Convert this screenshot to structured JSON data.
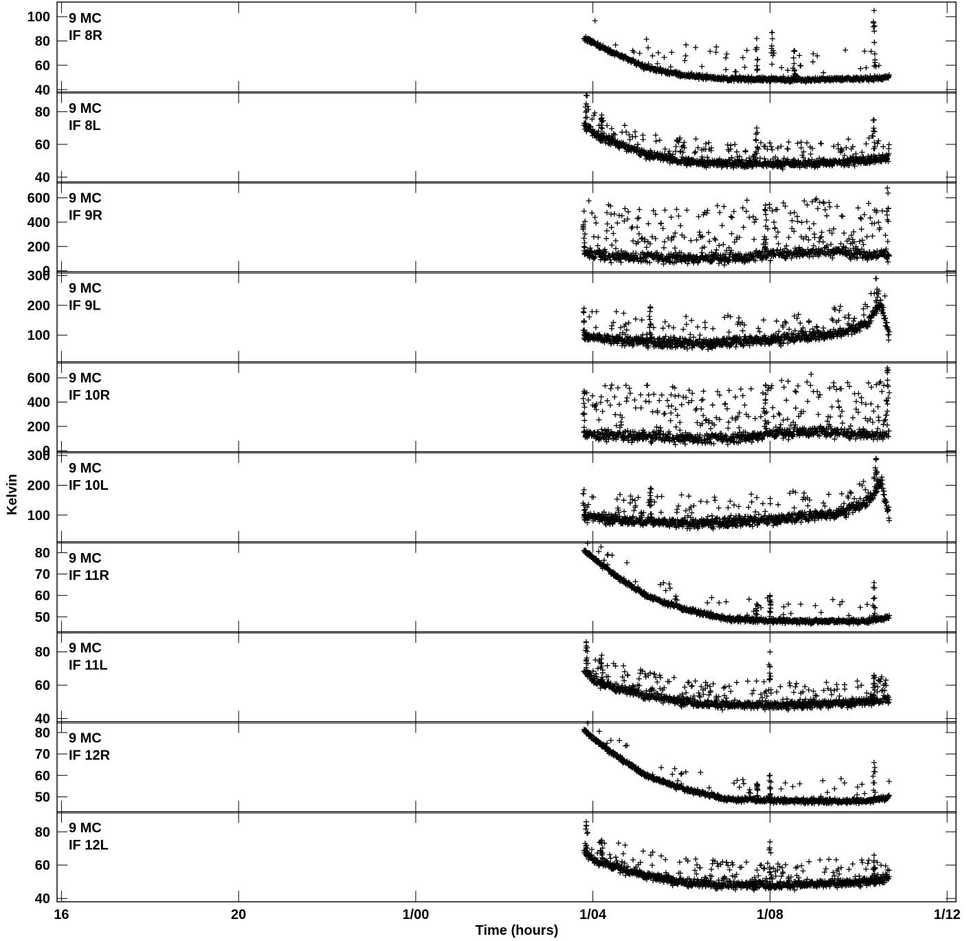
{
  "chart_data": {
    "type": "scatter",
    "xlabel": "Time (hours)",
    "ylabel": "Kelvin",
    "x_ticks": [
      {
        "hours": 16,
        "label": "16"
      },
      {
        "hours": 20,
        "label": "20"
      },
      {
        "hours": 24,
        "label": "1/00"
      },
      {
        "hours": 28,
        "label": "1/04"
      },
      {
        "hours": 32,
        "label": "1/08"
      },
      {
        "hours": 36,
        "label": "1/12"
      }
    ],
    "xlim": [
      15.9,
      36.2
    ],
    "marker": "+",
    "data_start_hours": 27.8,
    "data_end_hours": 34.7,
    "panels": [
      {
        "source": "9 MC",
        "channel": "IF 8R",
        "ylim": [
          38,
          112
        ],
        "yticks": [
          40,
          60,
          80,
          100
        ],
        "trend": [
          [
            27.8,
            82
          ],
          [
            28.1,
            77
          ],
          [
            28.6,
            68
          ],
          [
            29.2,
            58
          ],
          [
            30.0,
            52
          ],
          [
            31.0,
            49
          ],
          [
            32.5,
            48
          ],
          [
            34.2,
            49
          ],
          [
            34.7,
            50
          ]
        ],
        "scatter": 1.5,
        "outlier_rate": 0.06,
        "outlier_max": 25,
        "spikes": [
          [
            31.7,
            82
          ],
          [
            32.05,
            87
          ],
          [
            32.55,
            72
          ],
          [
            34.35,
            105
          ]
        ]
      },
      {
        "source": "9 MC",
        "channel": "IF 8L",
        "ylim": [
          37,
          92
        ],
        "yticks": [
          40,
          60,
          80
        ],
        "trend": [
          [
            27.8,
            72
          ],
          [
            28.1,
            65
          ],
          [
            28.6,
            60
          ],
          [
            29.2,
            54
          ],
          [
            30.0,
            50
          ],
          [
            31.0,
            48
          ],
          [
            32.5,
            48
          ],
          [
            34.2,
            50
          ],
          [
            34.7,
            52
          ]
        ],
        "scatter": 2.0,
        "outlier_rate": 0.18,
        "outlier_max": 14,
        "spikes": [
          [
            27.85,
            90
          ],
          [
            28.2,
            78
          ],
          [
            31.7,
            70
          ],
          [
            34.35,
            75
          ]
        ]
      },
      {
        "source": "9 MC",
        "channel": "IF 9R",
        "ylim": [
          -10,
          730
        ],
        "yticks": [
          0,
          200,
          400,
          600
        ],
        "trend": [
          [
            27.8,
            140
          ],
          [
            28.5,
            120
          ],
          [
            29.5,
            110
          ],
          [
            30.5,
            100
          ],
          [
            31.5,
            110
          ],
          [
            32.0,
            140
          ],
          [
            33.0,
            160
          ],
          [
            34.7,
            130
          ]
        ],
        "scatter": 35,
        "outlier_rate": 0.25,
        "outlier_max": 420,
        "spikes": [
          [
            27.8,
            490
          ],
          [
            31.9,
            540
          ],
          [
            34.65,
            680
          ]
        ]
      },
      {
        "source": "9 MC",
        "channel": "IF 9L",
        "ylim": [
          10,
          312
        ],
        "yticks": [
          100,
          200,
          300
        ],
        "trend": [
          [
            27.8,
            95
          ],
          [
            28.5,
            85
          ],
          [
            29.5,
            75
          ],
          [
            30.5,
            72
          ],
          [
            31.5,
            80
          ],
          [
            32.5,
            90
          ],
          [
            33.5,
            105
          ],
          [
            34.2,
            140
          ],
          [
            34.5,
            210
          ],
          [
            34.7,
            90
          ]
        ],
        "scatter": 14,
        "outlier_rate": 0.12,
        "outlier_max": 90,
        "spikes": [
          [
            27.8,
            190
          ],
          [
            29.3,
            195
          ],
          [
            34.4,
            290
          ]
        ]
      },
      {
        "source": "9 MC",
        "channel": "IF 10R",
        "ylim": [
          -10,
          730
        ],
        "yticks": [
          0,
          200,
          400,
          600
        ],
        "trend": [
          [
            27.8,
            140
          ],
          [
            28.5,
            120
          ],
          [
            29.5,
            110
          ],
          [
            30.5,
            100
          ],
          [
            31.5,
            110
          ],
          [
            32.0,
            140
          ],
          [
            33.0,
            160
          ],
          [
            34.7,
            130
          ]
        ],
        "scatter": 35,
        "outlier_rate": 0.25,
        "outlier_max": 420,
        "spikes": [
          [
            27.8,
            490
          ],
          [
            31.9,
            540
          ],
          [
            34.65,
            680
          ]
        ]
      },
      {
        "source": "9 MC",
        "channel": "IF 10L",
        "ylim": [
          10,
          312
        ],
        "yticks": [
          100,
          200,
          300
        ],
        "trend": [
          [
            27.8,
            95
          ],
          [
            28.5,
            85
          ],
          [
            29.5,
            75
          ],
          [
            30.5,
            72
          ],
          [
            31.5,
            80
          ],
          [
            32.5,
            90
          ],
          [
            33.5,
            105
          ],
          [
            34.2,
            140
          ],
          [
            34.5,
            210
          ],
          [
            34.7,
            90
          ]
        ],
        "scatter": 14,
        "outlier_rate": 0.12,
        "outlier_max": 90,
        "spikes": [
          [
            27.8,
            185
          ],
          [
            29.3,
            190
          ],
          [
            34.4,
            290
          ]
        ]
      },
      {
        "source": "9 MC",
        "channel": "IF 11R",
        "ylim": [
          43,
          85
        ],
        "yticks": [
          50,
          60,
          70,
          80
        ],
        "trend": [
          [
            27.8,
            81
          ],
          [
            28.1,
            76
          ],
          [
            28.6,
            68
          ],
          [
            29.2,
            60
          ],
          [
            30.0,
            54
          ],
          [
            31.0,
            49
          ],
          [
            32.5,
            48
          ],
          [
            34.2,
            48
          ],
          [
            34.7,
            50
          ]
        ],
        "scatter": 0.9,
        "outlier_rate": 0.05,
        "outlier_max": 10,
        "spikes": [
          [
            31.7,
            56
          ],
          [
            32.0,
            60
          ],
          [
            34.35,
            66
          ]
        ]
      },
      {
        "source": "9 MC",
        "channel": "IF 11L",
        "ylim": [
          38,
          92
        ],
        "yticks": [
          40,
          60,
          80
        ],
        "trend": [
          [
            27.8,
            68
          ],
          [
            28.1,
            62
          ],
          [
            28.6,
            58
          ],
          [
            29.2,
            54
          ],
          [
            30.0,
            50
          ],
          [
            31.0,
            48
          ],
          [
            32.5,
            48
          ],
          [
            34.2,
            50
          ],
          [
            34.7,
            52
          ]
        ],
        "scatter": 2.0,
        "outlier_rate": 0.18,
        "outlier_max": 14,
        "spikes": [
          [
            27.85,
            86
          ],
          [
            28.2,
            78
          ],
          [
            32.0,
            80
          ],
          [
            34.35,
            66
          ]
        ]
      },
      {
        "source": "9 MC",
        "channel": "IF 12R",
        "ylim": [
          43,
          85
        ],
        "yticks": [
          50,
          60,
          70,
          80
        ],
        "trend": [
          [
            27.8,
            81
          ],
          [
            28.1,
            76
          ],
          [
            28.6,
            68
          ],
          [
            29.2,
            60
          ],
          [
            30.0,
            54
          ],
          [
            31.0,
            49
          ],
          [
            32.5,
            48
          ],
          [
            34.2,
            48
          ],
          [
            34.7,
            50
          ]
        ],
        "scatter": 0.9,
        "outlier_rate": 0.05,
        "outlier_max": 10,
        "spikes": [
          [
            31.7,
            56
          ],
          [
            32.0,
            60
          ],
          [
            34.35,
            66
          ]
        ]
      },
      {
        "source": "9 MC",
        "channel": "IF 12L",
        "ylim": [
          38,
          92
        ],
        "yticks": [
          40,
          60,
          80
        ],
        "trend": [
          [
            27.8,
            68
          ],
          [
            28.1,
            62
          ],
          [
            28.6,
            58
          ],
          [
            29.2,
            54
          ],
          [
            30.0,
            50
          ],
          [
            31.0,
            48
          ],
          [
            32.5,
            48
          ],
          [
            34.2,
            50
          ],
          [
            34.7,
            52
          ]
        ],
        "scatter": 2.0,
        "outlier_rate": 0.18,
        "outlier_max": 14,
        "spikes": [
          [
            27.85,
            86
          ],
          [
            28.2,
            75
          ],
          [
            32.0,
            74
          ],
          [
            34.35,
            66
          ]
        ]
      }
    ]
  }
}
